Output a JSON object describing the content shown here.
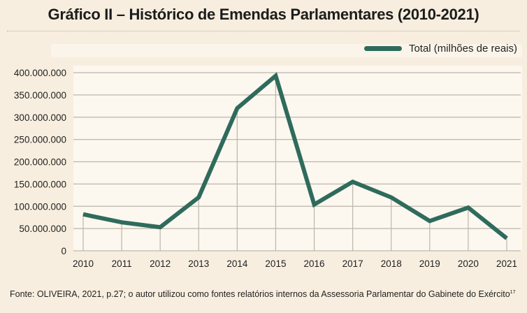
{
  "title": "Gráfico II – Histórico de Emendas Parlamentares (2010-2021)",
  "source": "Fonte: OLIVEIRA, 2021, p.27; o autor utilizou como fontes relatórios internos da Assessoria Parlamentar do Gabinete do Exército",
  "source_footnote": "17",
  "colors": {
    "line": "#2f6b5c",
    "grid": "#bdb6aa",
    "background": "#f7eedf",
    "plot_background": "#fcf7ef"
  },
  "chart_data": {
    "type": "line",
    "title": "Gráfico II – Histórico de Emendas Parlamentares (2010-2021)",
    "xlabel": "",
    "ylabel": "",
    "x": [
      "2010",
      "2011",
      "2012",
      "2013",
      "2014",
      "2015",
      "2016",
      "2017",
      "2018",
      "2019",
      "2020",
      "2021"
    ],
    "series": [
      {
        "name": "Total (milhões de reais)",
        "values": [
          82000000,
          64000000,
          53000000,
          120000000,
          320000000,
          393000000,
          104000000,
          155000000,
          120000000,
          67000000,
          97000000,
          28000000
        ]
      }
    ],
    "ylim": [
      0,
      400000000
    ],
    "yticks": [
      0,
      50000000,
      100000000,
      150000000,
      200000000,
      250000000,
      300000000,
      350000000,
      400000000
    ],
    "ytick_labels": [
      "0",
      "50.000.000",
      "100.000.000",
      "150.000.000",
      "200.000.000",
      "250.000.000",
      "300.000.000",
      "350.000.000",
      "400.000.000"
    ],
    "grid": "both",
    "legend": {
      "position": "top-right",
      "entries": [
        "Total (milhões de reais)"
      ]
    }
  }
}
